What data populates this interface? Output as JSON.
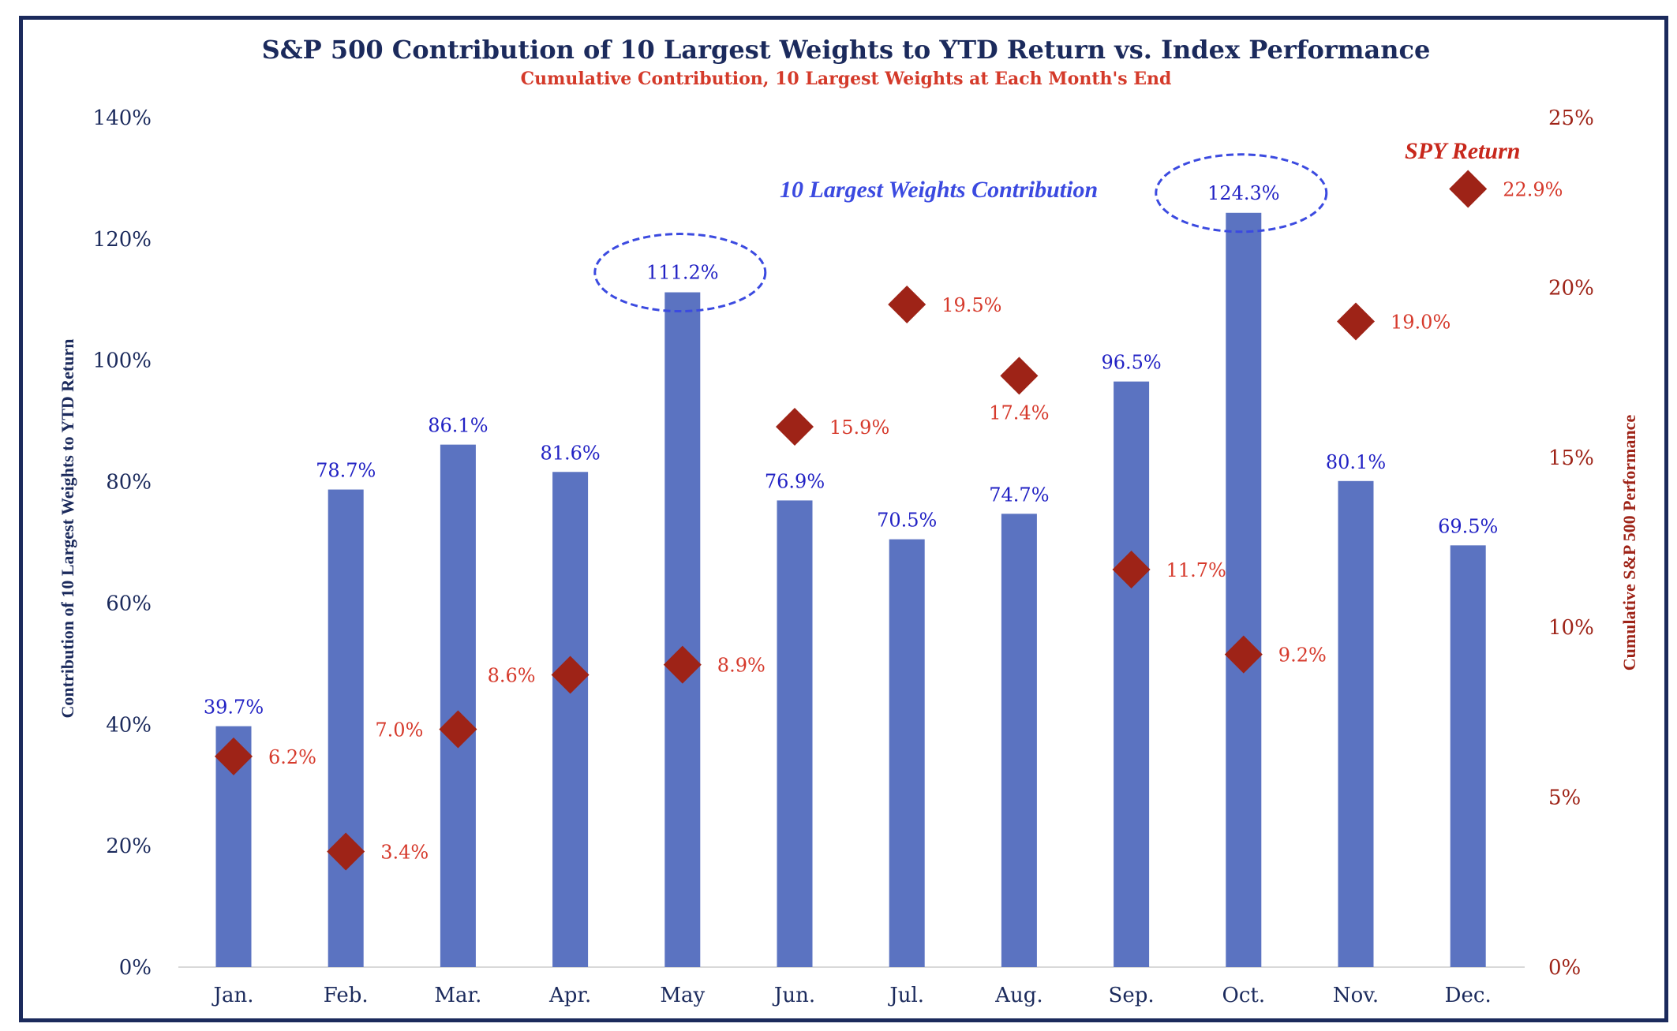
{
  "chart_data": {
    "type": "bar",
    "title": "S&P 500 Contribution of 10 Largest Weights to YTD Return vs. Index Performance",
    "subtitle": "Cumulative Contribution, 10 Largest Weights at Each Month's End",
    "categories": [
      "Jan.",
      "Feb.",
      "Mar.",
      "Apr.",
      "May",
      "Jun.",
      "Jul.",
      "Aug.",
      "Sep.",
      "Oct.",
      "Nov.",
      "Dec."
    ],
    "series": [
      {
        "name": "10 Largest Weights Contribution",
        "type": "bar",
        "axis": "left",
        "color": "#5b73c1",
        "label_color": "#2222c4",
        "values": [
          39.7,
          78.7,
          86.1,
          81.6,
          111.2,
          76.9,
          70.5,
          74.7,
          96.5,
          124.3,
          80.1,
          69.5
        ],
        "labels": [
          "39.7%",
          "78.7%",
          "86.1%",
          "81.6%",
          "111.2%",
          "76.9%",
          "70.5%",
          "74.7%",
          "96.5%",
          "124.3%",
          "80.1%",
          "69.5%"
        ],
        "highlighted": [
          "May",
          "Oct."
        ]
      },
      {
        "name": "SPY Return",
        "type": "scatter",
        "marker": "diamond",
        "axis": "right",
        "color": "#9e2317",
        "label_color": "#d63a2c",
        "values": [
          6.2,
          3.4,
          7.0,
          8.6,
          8.9,
          15.9,
          19.5,
          17.4,
          11.7,
          9.2,
          19.0,
          22.9
        ],
        "labels": [
          "6.2%",
          "3.4%",
          "7.0%",
          "8.6%",
          "8.9%",
          "15.9%",
          "19.5%",
          "17.4%",
          "11.7%",
          "9.2%",
          "19.0%",
          "22.9%"
        ],
        "label_positions": [
          "right",
          "right",
          "left",
          "left",
          "right",
          "right",
          "right",
          "below",
          "right",
          "right",
          "right",
          "right"
        ]
      }
    ],
    "ylabel": "Contribution of 10 Largest Weights to YTD Return",
    "ylim": [
      0,
      140
    ],
    "yticks": [
      0,
      20,
      40,
      60,
      80,
      100,
      120,
      140
    ],
    "ytick_labels": [
      "0%",
      "20%",
      "40%",
      "60%",
      "80%",
      "100%",
      "120%",
      "140%"
    ],
    "y2label": "Cumulative S&P 500 Performance",
    "y2lim": [
      0,
      25
    ],
    "y2ticks": [
      0,
      5,
      10,
      15,
      20,
      25
    ],
    "y2tick_labels": [
      "0%",
      "5%",
      "10%",
      "15%",
      "20%",
      "25%"
    ],
    "grid": false,
    "annotations": [
      {
        "text": "10 Largest Weights Contribution",
        "color": "#3b4ae0"
      },
      {
        "text": "SPY Return",
        "color": "#c8281c"
      }
    ],
    "colors": {
      "title": "#1b2a5c",
      "subtitle": "#d43a2a",
      "left_axis": "#1b2a5c",
      "right_axis": "#9e2317",
      "ellipse": "#3b4ae0"
    }
  }
}
